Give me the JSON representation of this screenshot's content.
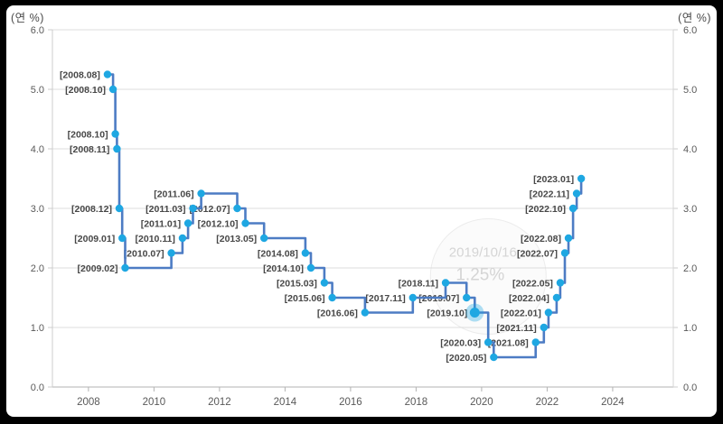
{
  "axes": {
    "unit_left": "(연 %)",
    "unit_right": "(연 %)"
  },
  "watermark": {
    "date": "2019/10/16",
    "value": "1.25%"
  },
  "chart_data": {
    "type": "line",
    "step": true,
    "title": "",
    "xlabel": "",
    "ylabel": "(연 %)",
    "grid": "horizontal-only",
    "legend": "none",
    "xlim": [
      2006.9,
      2025.85
    ],
    "ylim": [
      0,
      6
    ],
    "x_tick_values": [
      2008,
      2010,
      2012,
      2014,
      2016,
      2018,
      2020,
      2022,
      2024
    ],
    "x_tick_labels": [
      "2008",
      "2010",
      "2012",
      "2014",
      "2016",
      "2018",
      "2020",
      "2022",
      "2024"
    ],
    "y_tick_values": [
      0,
      1,
      2,
      3,
      4,
      5,
      6
    ],
    "y_tick_labels": [
      "0.0",
      "1.0",
      "2.0",
      "3.0",
      "4.0",
      "5.0",
      "6.0"
    ],
    "highlight": {
      "label": "[2019.10]",
      "date": "2019/10/16",
      "value_text": "1.25%"
    },
    "points": [
      {
        "label": "[2008.08]",
        "x": 2008.58,
        "value": 5.25
      },
      {
        "label": "[2008.10]",
        "x": 2008.75,
        "value": 5.0
      },
      {
        "label": "[2008.10]",
        "x": 2008.82,
        "value": 4.25
      },
      {
        "label": "[2008.11]",
        "x": 2008.87,
        "value": 4.0
      },
      {
        "label": "[2008.12]",
        "x": 2008.94,
        "value": 3.0
      },
      {
        "label": "[2009.01]",
        "x": 2009.03,
        "value": 2.5
      },
      {
        "label": "[2009.02]",
        "x": 2009.12,
        "value": 2.0
      },
      {
        "label": "[2010.07]",
        "x": 2010.53,
        "value": 2.25
      },
      {
        "label": "[2010.11]",
        "x": 2010.87,
        "value": 2.5
      },
      {
        "label": "[2011.01]",
        "x": 2011.04,
        "value": 2.75
      },
      {
        "label": "[2011.03]",
        "x": 2011.19,
        "value": 3.0
      },
      {
        "label": "[2011.06]",
        "x": 2011.44,
        "value": 3.25
      },
      {
        "label": "[2012.07]",
        "x": 2012.54,
        "value": 3.0
      },
      {
        "label": "[2012.10]",
        "x": 2012.79,
        "value": 2.75
      },
      {
        "label": "[2013.05]",
        "x": 2013.36,
        "value": 2.5
      },
      {
        "label": "[2014.08]",
        "x": 2014.62,
        "value": 2.25
      },
      {
        "label": "[2014.10]",
        "x": 2014.79,
        "value": 2.0
      },
      {
        "label": "[2015.03]",
        "x": 2015.2,
        "value": 1.75
      },
      {
        "label": "[2015.06]",
        "x": 2015.44,
        "value": 1.5
      },
      {
        "label": "[2016.06]",
        "x": 2016.44,
        "value": 1.25
      },
      {
        "label": "[2017.11]",
        "x": 2017.9,
        "value": 1.5
      },
      {
        "label": "[2018.11]",
        "x": 2018.9,
        "value": 1.75
      },
      {
        "label": "[2019.07]",
        "x": 2019.54,
        "value": 1.5
      },
      {
        "label": "[2019.10]",
        "x": 2019.79,
        "value": 1.25,
        "highlight": true
      },
      {
        "label": "[2020.03]",
        "x": 2020.2,
        "value": 0.75
      },
      {
        "label": "[2020.05]",
        "x": 2020.37,
        "value": 0.5
      },
      {
        "label": "[2021.08]",
        "x": 2021.65,
        "value": 0.75
      },
      {
        "label": "[2021.11]",
        "x": 2021.9,
        "value": 1.0
      },
      {
        "label": "[2022.01]",
        "x": 2022.04,
        "value": 1.25
      },
      {
        "label": "[2022.04]",
        "x": 2022.29,
        "value": 1.5
      },
      {
        "label": "[2022.05]",
        "x": 2022.4,
        "value": 1.75
      },
      {
        "label": "[2022.07]",
        "x": 2022.54,
        "value": 2.25
      },
      {
        "label": "[2022.08]",
        "x": 2022.65,
        "value": 2.5
      },
      {
        "label": "[2022.10]",
        "x": 2022.79,
        "value": 3.0
      },
      {
        "label": "[2022.11]",
        "x": 2022.9,
        "value": 3.25
      },
      {
        "label": "[2023.01]",
        "x": 2023.04,
        "value": 3.5
      }
    ],
    "colors": {
      "line": "#4d7cc4",
      "marker": "#1ea7e2",
      "marker_halo": "#1ea7e2",
      "grid": "#dcdcdc",
      "axis": "#b3b3b3",
      "border": "#cccccc",
      "tick_text": "#595959",
      "point_label": "#474747",
      "watermark_text": "#d5d5d5",
      "watermark_circle": "#ececec"
    }
  }
}
